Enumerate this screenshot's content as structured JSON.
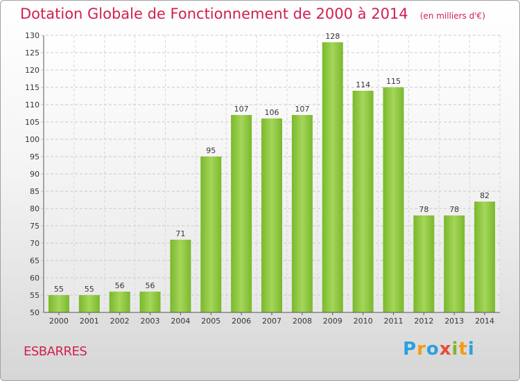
{
  "header": {
    "title": "Dotation Globale de Fonctionnement de 2000 à 2014",
    "subtitle": "(en milliers d'€)"
  },
  "footer": {
    "commune": "ESBARRES",
    "brand_letters": [
      "P",
      "r",
      "o",
      "x",
      "i",
      "t",
      "i"
    ],
    "brand_colors": [
      "#2aa0e0",
      "#f39c12",
      "#2aa0e0",
      "#e74c3c",
      "#7ab82c",
      "#f39c12",
      "#2aa0e0"
    ]
  },
  "chart_data": {
    "type": "bar",
    "categories": [
      "2000",
      "2001",
      "2002",
      "2003",
      "2004",
      "2005",
      "2006",
      "2007",
      "2008",
      "2009",
      "2010",
      "2011",
      "2012",
      "2013",
      "2014"
    ],
    "values": [
      55,
      55,
      56,
      56,
      71,
      95,
      107,
      106,
      107,
      128,
      114,
      115,
      78,
      78,
      82
    ],
    "ylim": [
      50,
      130
    ],
    "yticks": [
      50,
      55,
      60,
      65,
      70,
      75,
      80,
      85,
      90,
      95,
      100,
      105,
      110,
      115,
      120,
      125,
      130
    ],
    "grid": true,
    "bar_color": "#7ab82c",
    "bar_color_light": "#a5d65a",
    "xlabel": "",
    "ylabel": ""
  }
}
